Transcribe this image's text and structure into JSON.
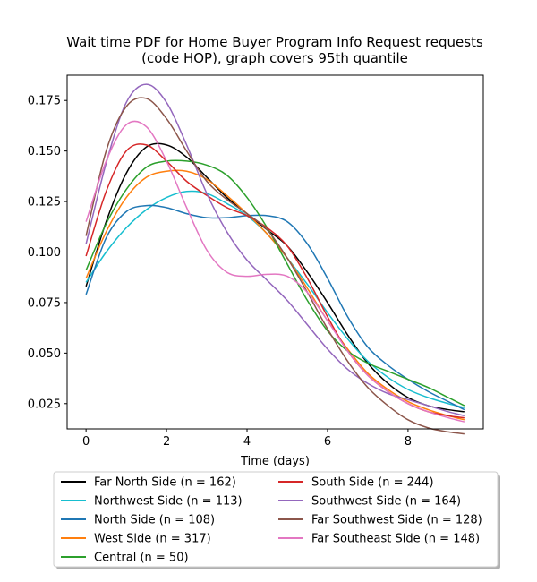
{
  "chart_data": {
    "type": "line",
    "title": "Wait time PDF for Home Buyer Program Info Request  requests\n(code HOP), graph covers 95th quantile",
    "xlabel": "Time (days)",
    "ylabel": "",
    "xlim": [
      -0.47,
      9.87
    ],
    "ylim": [
      0.0125,
      0.1875
    ],
    "xticks": [
      0,
      2,
      4,
      6,
      8
    ],
    "yticks": [
      0.025,
      0.05,
      0.075,
      0.1,
      0.125,
      0.15,
      0.175
    ],
    "xtick_labels": [
      "0",
      "2",
      "4",
      "6",
      "8"
    ],
    "ytick_labels": [
      "0.025",
      "0.050",
      "0.075",
      "0.100",
      "0.125",
      "0.150",
      "0.175"
    ],
    "grid": false,
    "legend_position": "below",
    "series": [
      {
        "name": "Far North Side (n = 162)",
        "color": "#000000",
        "x": [
          0,
          0.5,
          1,
          1.5,
          2,
          2.5,
          3,
          3.5,
          4,
          4.5,
          5,
          5.5,
          6,
          6.5,
          7,
          7.5,
          8,
          8.5,
          9,
          9.4
        ],
        "y": [
          0.083,
          0.115,
          0.139,
          0.152,
          0.153,
          0.147,
          0.137,
          0.127,
          0.119,
          0.111,
          0.103,
          0.09,
          0.075,
          0.059,
          0.045,
          0.035,
          0.028,
          0.024,
          0.022,
          0.021
        ]
      },
      {
        "name": "Northwest Side (n = 113)",
        "color": "#17becf",
        "x": [
          0,
          0.5,
          1,
          1.5,
          2,
          2.5,
          3,
          3.5,
          4,
          4.5,
          5,
          5.5,
          6,
          6.5,
          7,
          7.5,
          8,
          8.5,
          9,
          9.4
        ],
        "y": [
          0.085,
          0.1,
          0.112,
          0.121,
          0.127,
          0.13,
          0.129,
          0.124,
          0.118,
          0.109,
          0.097,
          0.084,
          0.07,
          0.057,
          0.046,
          0.038,
          0.032,
          0.028,
          0.025,
          0.023
        ]
      },
      {
        "name": "North Side (n = 108)",
        "color": "#1f77b4",
        "x": [
          0,
          0.5,
          1,
          1.5,
          2,
          2.5,
          3,
          3.5,
          4,
          4.5,
          5,
          5.5,
          6,
          6.5,
          7,
          7.5,
          8,
          8.5,
          9,
          9.4
        ],
        "y": [
          0.079,
          0.107,
          0.12,
          0.123,
          0.122,
          0.119,
          0.117,
          0.117,
          0.118,
          0.118,
          0.115,
          0.104,
          0.087,
          0.068,
          0.053,
          0.044,
          0.037,
          0.031,
          0.026,
          0.022
        ]
      },
      {
        "name": "West Side (n = 317)",
        "color": "#ff7f0e",
        "x": [
          0,
          0.5,
          1,
          1.5,
          2,
          2.5,
          3,
          3.5,
          4,
          4.5,
          5,
          5.5,
          6,
          6.5,
          7,
          7.5,
          8,
          8.5,
          9,
          9.4
        ],
        "y": [
          0.087,
          0.11,
          0.127,
          0.137,
          0.14,
          0.14,
          0.136,
          0.128,
          0.119,
          0.109,
          0.097,
          0.082,
          0.066,
          0.052,
          0.04,
          0.032,
          0.026,
          0.022,
          0.019,
          0.017
        ]
      },
      {
        "name": "Central (n = 50)",
        "color": "#2ca02c",
        "x": [
          0,
          0.5,
          1,
          1.5,
          2,
          2.5,
          3,
          3.5,
          4,
          4.5,
          5,
          5.5,
          6,
          6.5,
          7,
          7.5,
          8,
          8.5,
          9,
          9.4
        ],
        "y": [
          0.091,
          0.114,
          0.131,
          0.142,
          0.145,
          0.145,
          0.143,
          0.138,
          0.127,
          0.112,
          0.094,
          0.076,
          0.061,
          0.051,
          0.045,
          0.041,
          0.037,
          0.033,
          0.028,
          0.024
        ]
      },
      {
        "name": "South Side (n = 244)",
        "color": "#d62728",
        "x": [
          0,
          0.5,
          1,
          1.5,
          2,
          2.5,
          3,
          3.5,
          4,
          4.5,
          5,
          5.5,
          6,
          6.5,
          7,
          7.5,
          8,
          8.5,
          9,
          9.4
        ],
        "y": [
          0.098,
          0.13,
          0.15,
          0.153,
          0.145,
          0.135,
          0.128,
          0.122,
          0.118,
          0.112,
          0.103,
          0.087,
          0.068,
          0.051,
          0.039,
          0.031,
          0.025,
          0.021,
          0.019,
          0.018
        ]
      },
      {
        "name": "Southwest Side (n = 164)",
        "color": "#9467bd",
        "x": [
          0,
          0.5,
          1,
          1.5,
          2,
          2.5,
          3,
          3.5,
          4,
          4.5,
          5,
          5.5,
          6,
          6.5,
          7,
          7.5,
          8,
          8.5,
          9,
          9.4
        ],
        "y": [
          0.104,
          0.144,
          0.174,
          0.183,
          0.174,
          0.153,
          0.129,
          0.11,
          0.096,
          0.086,
          0.076,
          0.064,
          0.052,
          0.042,
          0.035,
          0.03,
          0.027,
          0.024,
          0.021,
          0.019
        ]
      },
      {
        "name": "Far Southwest Side (n = 128)",
        "color": "#8c564b",
        "x": [
          0,
          0.5,
          1,
          1.5,
          2,
          2.5,
          3,
          3.5,
          4,
          4.5,
          5,
          5.5,
          6,
          6.5,
          7,
          7.5,
          8,
          8.5,
          9,
          9.4
        ],
        "y": [
          0.108,
          0.15,
          0.172,
          0.176,
          0.166,
          0.15,
          0.135,
          0.126,
          0.119,
          0.111,
          0.097,
          0.08,
          0.062,
          0.046,
          0.033,
          0.024,
          0.017,
          0.013,
          0.011,
          0.01
        ]
      },
      {
        "name": "Far Southeast Side (n = 148)",
        "color": "#e377c2",
        "x": [
          0,
          0.5,
          1,
          1.5,
          2,
          2.5,
          3,
          3.5,
          4,
          4.5,
          5,
          5.5,
          6,
          6.5,
          7,
          7.5,
          8,
          8.5,
          9,
          9.4
        ],
        "y": [
          0.115,
          0.145,
          0.163,
          0.162,
          0.145,
          0.122,
          0.101,
          0.09,
          0.088,
          0.089,
          0.088,
          0.08,
          0.066,
          0.051,
          0.039,
          0.031,
          0.025,
          0.021,
          0.018,
          0.016
        ]
      }
    ]
  }
}
